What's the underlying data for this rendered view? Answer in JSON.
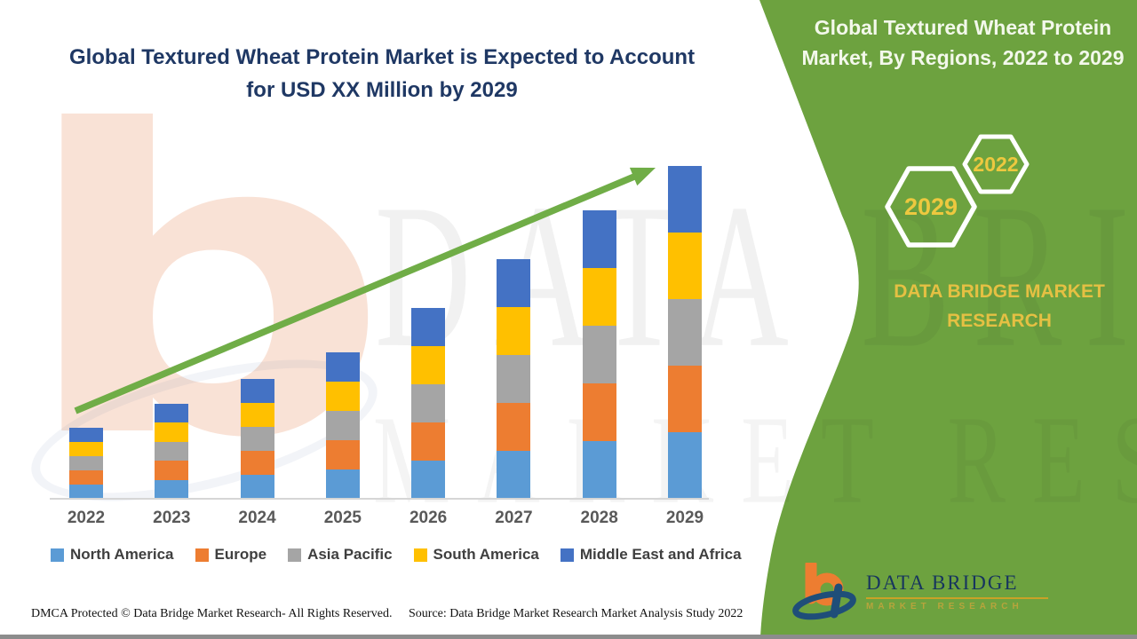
{
  "main": {
    "title": "Global Textured Wheat Protein Market is Expected to Account for USD XX Million by 2029"
  },
  "watermark": {
    "letter": "b",
    "line1": "DATA BRIDGE",
    "line2": "MARKET RESEARCH"
  },
  "side_panel": {
    "title": "Global Textured Wheat Protein Market, By Regions, 2022 to 2029",
    "badges": [
      {
        "label": "2029"
      },
      {
        "label": "2022"
      }
    ],
    "brand_text": "DATA BRIDGE MARKET RESEARCH",
    "colors": {
      "panel_green": "#6da23f",
      "badge_text_yellow": "#edc83f",
      "title_text": "#f3f8eb"
    }
  },
  "chart_data": {
    "type": "bar",
    "stacked": true,
    "title": "Global Textured Wheat Protein Market is Expected to Account for USD XX Million by 2029",
    "xlabel": "",
    "ylabel": "",
    "units": "relative height (no numeric axis shown; values stated as USD XX Million)",
    "pixels_per_unit": 1,
    "categories": [
      "2022",
      "2023",
      "2024",
      "2025",
      "2026",
      "2027",
      "2028",
      "2029"
    ],
    "series": [
      {
        "name": "North America",
        "color": "#5b9bd5",
        "values": [
          16,
          21.5,
          27,
          33,
          43,
          54,
          65,
          75
        ]
      },
      {
        "name": "Europe",
        "color": "#ed7d31",
        "values": [
          16,
          21.5,
          27,
          33,
          43,
          54,
          65,
          75
        ]
      },
      {
        "name": "Asia Pacific",
        "color": "#a5a5a5",
        "values": [
          16,
          21.5,
          27,
          33,
          43,
          54,
          65,
          75
        ]
      },
      {
        "name": "South America",
        "color": "#ffc000",
        "values": [
          16,
          21.5,
          27,
          33,
          43,
          54,
          65,
          75
        ]
      },
      {
        "name": "Middle East and Africa",
        "color": "#4472c4",
        "values": [
          16,
          21.5,
          27,
          33,
          43,
          54,
          65,
          75
        ]
      }
    ],
    "bar_totals_relative": [
      80,
      107.5,
      135,
      165,
      215,
      270,
      325,
      375
    ],
    "legend_position": "bottom",
    "grid": false,
    "value_axis_visible": false,
    "trend_arrow": true,
    "trend_arrow_color": "#70ad47"
  },
  "footer": {
    "dmca": "DMCA Protected © Data Bridge Market Research- All Rights Reserved.",
    "source": "Source: Data Bridge Market Research Market Analysis Study 2022"
  },
  "logo": {
    "text": "DATA BRIDGE",
    "tagline": "MARKET RESEARCH"
  }
}
